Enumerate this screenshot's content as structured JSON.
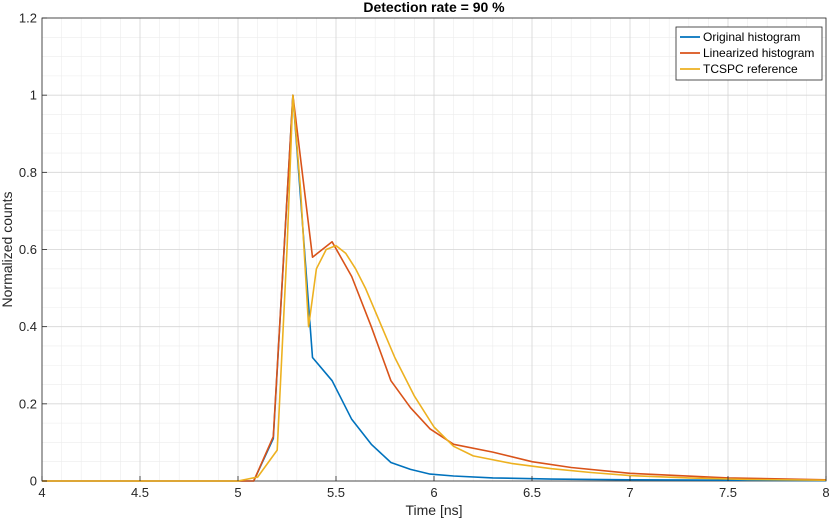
{
  "chart_data": {
    "type": "line",
    "title": "Detection rate = 90 %",
    "xlabel": "Time [ns]",
    "ylabel": "Normalized counts",
    "xlim": [
      4,
      8
    ],
    "ylim": [
      0,
      1.2
    ],
    "xticks": [
      4,
      4.5,
      5,
      5.5,
      6,
      6.5,
      7,
      7.5,
      8
    ],
    "xtick_labels": [
      "4",
      "4.5",
      "5",
      "5.5",
      "6",
      "6.5",
      "7",
      "7.5",
      "8"
    ],
    "yticks": [
      0,
      0.2,
      0.4,
      0.6,
      0.8,
      1,
      1.2
    ],
    "ytick_labels": [
      "0",
      "0.2",
      "0.4",
      "0.6",
      "0.8",
      "1",
      "1.2"
    ],
    "grid": true,
    "minor_grid": true,
    "legend_position": "top-right",
    "series": [
      {
        "name": "Original histogram",
        "color": "#0072BD",
        "x": [
          4,
          5.08,
          5.18,
          5.28,
          5.38,
          5.48,
          5.58,
          5.68,
          5.78,
          5.88,
          5.98,
          6.1,
          6.3,
          6.6,
          7.0,
          7.5,
          8.0
        ],
        "y": [
          0,
          0,
          0.11,
          1.0,
          0.32,
          0.26,
          0.16,
          0.095,
          0.048,
          0.03,
          0.018,
          0.013,
          0.008,
          0.005,
          0.003,
          0.002,
          0.001
        ]
      },
      {
        "name": "Linearized histogram",
        "color": "#D95319",
        "x": [
          4,
          5.08,
          5.18,
          5.28,
          5.38,
          5.48,
          5.58,
          5.68,
          5.78,
          5.88,
          5.98,
          6.1,
          6.3,
          6.5,
          6.7,
          7.0,
          7.5,
          8.0
        ],
        "y": [
          0,
          0,
          0.115,
          1.0,
          0.58,
          0.62,
          0.53,
          0.4,
          0.26,
          0.19,
          0.135,
          0.095,
          0.075,
          0.05,
          0.035,
          0.02,
          0.008,
          0.003
        ]
      },
      {
        "name": "TCSPC reference",
        "color": "#EDB120",
        "x": [
          4,
          5.0,
          5.1,
          5.2,
          5.25,
          5.28,
          5.32,
          5.36,
          5.4,
          5.45,
          5.5,
          5.55,
          5.6,
          5.65,
          5.7,
          5.8,
          5.9,
          6.0,
          6.1,
          6.2,
          6.4,
          6.6,
          6.8,
          7.0,
          7.3,
          7.6,
          8.0
        ],
        "y": [
          0,
          0,
          0.01,
          0.08,
          0.6,
          1.0,
          0.75,
          0.4,
          0.55,
          0.6,
          0.61,
          0.59,
          0.55,
          0.5,
          0.44,
          0.32,
          0.22,
          0.14,
          0.09,
          0.065,
          0.045,
          0.032,
          0.022,
          0.014,
          0.008,
          0.004,
          0.002
        ]
      }
    ]
  }
}
